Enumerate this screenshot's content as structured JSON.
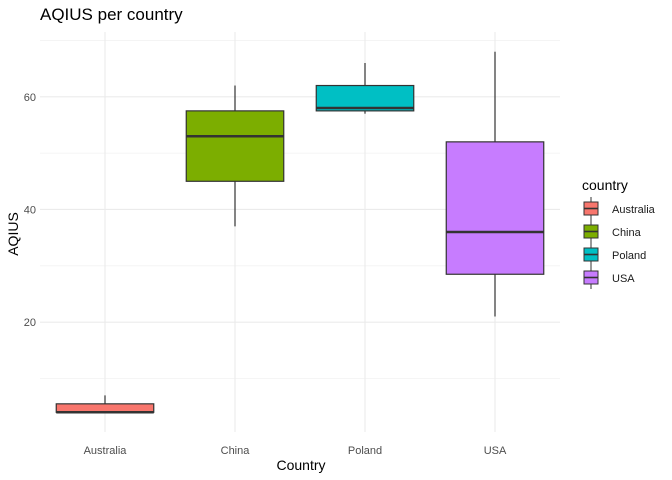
{
  "chart_data": {
    "type": "boxplot",
    "title": "AQIUS per country",
    "xlabel": "Country",
    "ylabel": "AQIUS",
    "ylim": [
      0.5,
      71.5
    ],
    "yticks": [
      20,
      40,
      60
    ],
    "grid": true,
    "legend_title": "country",
    "legend_position": "right",
    "categories": [
      "Australia",
      "China",
      "Poland",
      "USA"
    ],
    "boxes": [
      {
        "category": "Australia",
        "color": "#F8766D",
        "whisker_low": 4,
        "q1": 4,
        "median": 4,
        "q3": 5.5,
        "whisker_high": 7
      },
      {
        "category": "China",
        "color": "#7CAE00",
        "whisker_low": 37,
        "q1": 45,
        "median": 53,
        "q3": 57.5,
        "whisker_high": 62
      },
      {
        "category": "Poland",
        "color": "#00BFC4",
        "whisker_low": 57,
        "q1": 57.5,
        "median": 58,
        "q3": 62,
        "whisker_high": 66
      },
      {
        "category": "USA",
        "color": "#C77CFF",
        "whisker_low": 21,
        "q1": 28.5,
        "median": 36,
        "q3": 52,
        "whisker_high": 68
      }
    ]
  }
}
